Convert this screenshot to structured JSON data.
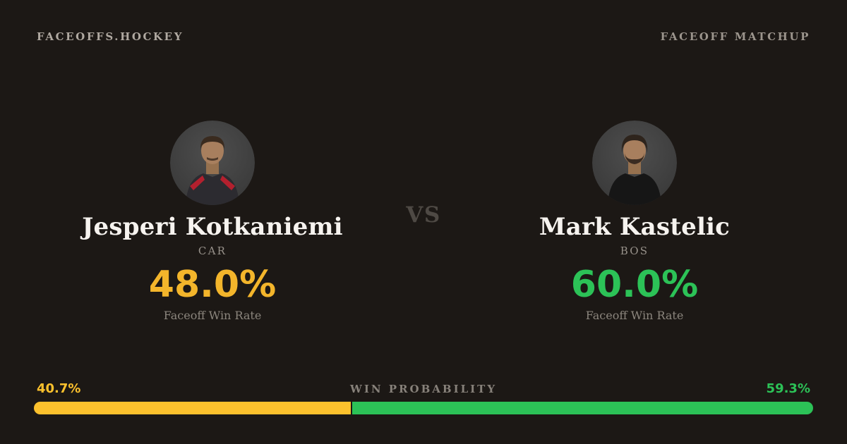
{
  "header": {
    "brand": "FACEOFFS.HOCKEY",
    "page_label": "FACEOFF MATCHUP"
  },
  "matchup": {
    "vs_label": "VS",
    "players": [
      {
        "name": "Jesperi Kotkaniemi",
        "team": "CAR",
        "faceoff_win_rate": "48.0%",
        "stat_label": "Faceoff Win Rate",
        "accent_color": "#f3b52b",
        "avatar": "player-headshot"
      },
      {
        "name": "Mark Kastelic",
        "team": "BOS",
        "faceoff_win_rate": "60.0%",
        "stat_label": "Faceoff Win Rate",
        "accent_color": "#2cc257",
        "avatar": "player-headshot"
      }
    ]
  },
  "win_probability": {
    "title": "WIN PROBABILITY",
    "left": {
      "label": "40.7%",
      "value": 40.7,
      "color": "#fcc12d"
    },
    "right": {
      "label": "59.3%",
      "value": 59.3,
      "color": "#2cc257"
    }
  },
  "chart_data": {
    "type": "bar",
    "orientation": "horizontal",
    "stacked": true,
    "title": "WIN PROBABILITY",
    "categories": [
      "Win Probability"
    ],
    "series": [
      {
        "name": "Jesperi Kotkaniemi (CAR)",
        "values": [
          40.7
        ],
        "color": "#fcc12d"
      },
      {
        "name": "Mark Kastelic (BOS)",
        "values": [
          59.3
        ],
        "color": "#2cc257"
      }
    ],
    "xlim": [
      0,
      100
    ],
    "annotations": {
      "kotkaniemi_faceoff_win_rate_pct": 48.0,
      "kastelic_faceoff_win_rate_pct": 60.0
    }
  },
  "colors": {
    "background": "#1c1815",
    "heading_text": "#b0a9a1",
    "muted_text": "#8b857d",
    "name_text": "#f6f3ef",
    "vs_text": "#4e4944",
    "yellow": "#f3b52b",
    "green": "#2cc257"
  }
}
